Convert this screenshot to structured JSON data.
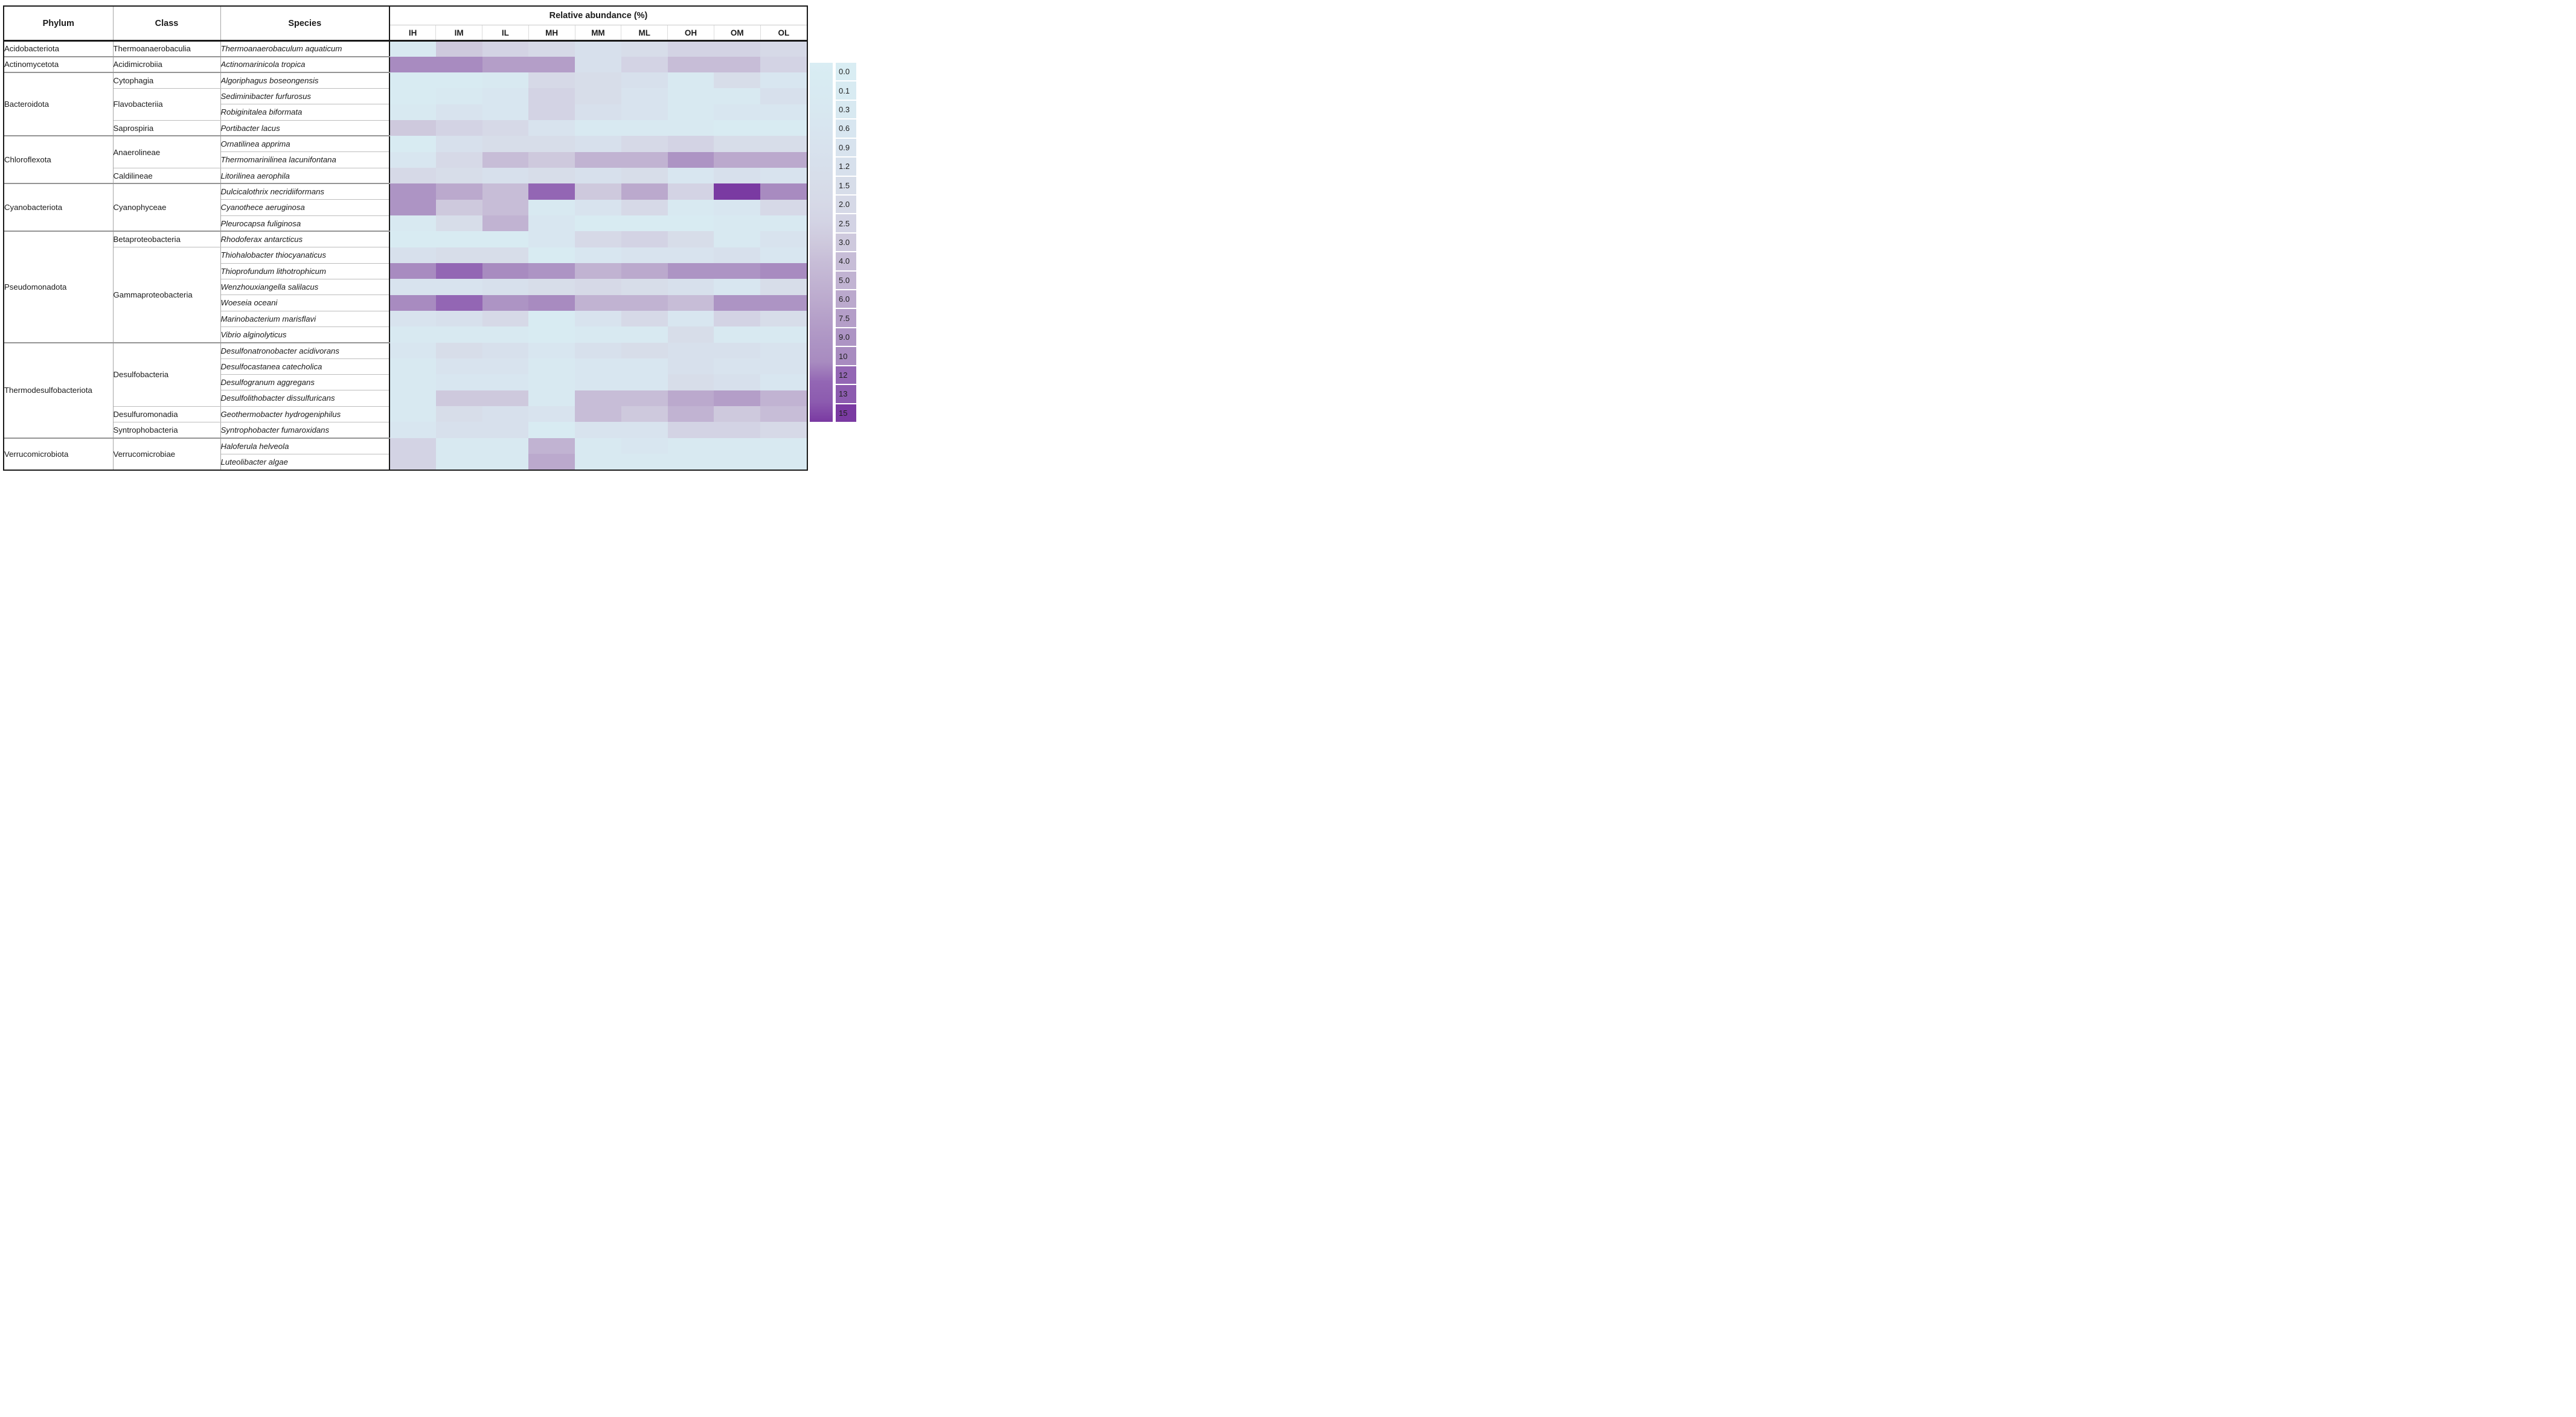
{
  "header": {
    "phylum_label": "Phylum",
    "class_label": "Class",
    "species_label": "Species",
    "abundance_title": "Relative abundance (%)"
  },
  "chart_data": {
    "type": "heatmap",
    "title": "Relative abundance (%)",
    "columns": [
      "IH",
      "IM",
      "IL",
      "MH",
      "MM",
      "ML",
      "OH",
      "OM",
      "OL"
    ],
    "rows": [
      {
        "phylum": "Acidobacteriota",
        "class": "Thermoanaerobaculia",
        "species": "Thermoanaerobaculum aquaticum",
        "values": [
          0.3,
          3.0,
          2.5,
          2.0,
          1.2,
          1.5,
          2.5,
          2.5,
          2.0
        ]
      },
      {
        "phylum": "Actinomycetota",
        "class": "Acidimicrobiia",
        "species": "Actinomarinicola tropica",
        "values": [
          10,
          10,
          7.5,
          7.5,
          1.2,
          2.5,
          4.0,
          4.0,
          2.5
        ]
      },
      {
        "phylum": "Bacteroidota",
        "class": "Cytophagia",
        "species": "Algoriphagus boseongensis",
        "values": [
          0.1,
          0.1,
          0.3,
          2.0,
          1.5,
          1.2,
          0.3,
          1.5,
          0.6
        ]
      },
      {
        "phylum": "Bacteroidota",
        "class": "Flavobacteriia",
        "species": "Sediminibacter furfurosus",
        "values": [
          0.1,
          0.3,
          0.6,
          2.5,
          1.5,
          0.9,
          0.3,
          0.3,
          1.2
        ]
      },
      {
        "phylum": "Bacteroidota",
        "class": "Flavobacteriia",
        "species": "Robiginitalea biformata",
        "values": [
          0.3,
          0.9,
          0.6,
          2.5,
          1.2,
          0.9,
          0.3,
          0.6,
          0.6
        ]
      },
      {
        "phylum": "Bacteroidota",
        "class": "Saprospiria",
        "species": "Portibacter lacus",
        "values": [
          3.0,
          2.5,
          2.0,
          0.9,
          0.3,
          0.3,
          0.3,
          0.1,
          0.1
        ]
      },
      {
        "phylum": "Chloroflexota",
        "class": "Anaerolineae",
        "species": "Ornatilinea apprima",
        "values": [
          0.1,
          1.2,
          1.5,
          1.5,
          1.2,
          2.0,
          2.5,
          1.5,
          1.5
        ]
      },
      {
        "phylum": "Chloroflexota",
        "class": "Anaerolineae",
        "species": "Thermomarinilinea lacunifontana",
        "values": [
          0.6,
          2.0,
          4.0,
          3.0,
          5.0,
          5.0,
          9.0,
          6.0,
          6.0
        ]
      },
      {
        "phylum": "Chloroflexota",
        "class": "Caldilineae",
        "species": "Litorilinea aerophila",
        "values": [
          2.0,
          1.5,
          1.2,
          1.5,
          1.2,
          1.5,
          0.6,
          1.2,
          0.9
        ]
      },
      {
        "phylum": "Cyanobacteriota",
        "class": "Cyanophyceae",
        "species": "Dulcicalothrix necridiiformans",
        "values": [
          9.0,
          6.0,
          4.0,
          12,
          3.0,
          6.0,
          2.5,
          15,
          10
        ]
      },
      {
        "phylum": "Cyanobacteriota",
        "class": "Cyanophyceae",
        "species": "Cyanothece aeruginosa",
        "values": [
          9.0,
          3.0,
          4.0,
          0.3,
          0.9,
          2.0,
          0.3,
          0.6,
          2.0
        ]
      },
      {
        "phylum": "Cyanobacteriota",
        "class": "Cyanophyceae",
        "species": "Pleurocapsa fuliginosa",
        "values": [
          0.3,
          1.5,
          5.0,
          0.6,
          0.1,
          0.1,
          0.1,
          0.3,
          0.3
        ]
      },
      {
        "phylum": "Pseudomonadota",
        "class": "Betaproteobacteria",
        "species": "Rhodoferax antarcticus",
        "values": [
          0.1,
          0.1,
          0.1,
          0.6,
          2.0,
          2.5,
          1.5,
          0.3,
          0.9
        ]
      },
      {
        "phylum": "Pseudomonadota",
        "class": "Gammaproteobacteria",
        "species": "Thiohalobacter thiocyanaticus",
        "values": [
          1.2,
          1.5,
          1.5,
          0.1,
          0.6,
          0.9,
          0.9,
          1.2,
          0.6
        ]
      },
      {
        "phylum": "Pseudomonadota",
        "class": "Gammaproteobacteria",
        "species": "Thioprofundum lithotrophicum",
        "values": [
          10,
          12,
          10,
          9.0,
          5.0,
          6.0,
          9.0,
          9.0,
          10
        ]
      },
      {
        "phylum": "Pseudomonadota",
        "class": "Gammaproteobacteria",
        "species": "Wenzhouxiangella salilacus",
        "values": [
          0.9,
          0.9,
          1.2,
          1.5,
          2.0,
          1.5,
          1.2,
          0.6,
          1.5
        ]
      },
      {
        "phylum": "Pseudomonadota",
        "class": "Gammaproteobacteria",
        "species": "Woeseia oceani",
        "values": [
          10,
          12,
          9.0,
          10,
          5.0,
          5.0,
          4.0,
          9.0,
          9.0
        ]
      },
      {
        "phylum": "Pseudomonadota",
        "class": "Gammaproteobacteria",
        "species": "Marinobacterium marisflavi",
        "values": [
          0.9,
          1.2,
          2.0,
          0.1,
          0.9,
          2.0,
          0.6,
          2.5,
          1.5
        ]
      },
      {
        "phylum": "Pseudomonadota",
        "class": "Gammaproteobacteria",
        "species": "Vibrio alginolyticus",
        "values": [
          0.3,
          0.3,
          0.3,
          0.1,
          0.3,
          0.3,
          1.5,
          0.3,
          0.3
        ]
      },
      {
        "phylum": "Thermodesulfobacteriota",
        "class": "Desulfobacteria",
        "species": "Desulfonatronobacter acidivorans",
        "values": [
          0.6,
          1.5,
          1.2,
          0.6,
          1.2,
          1.5,
          1.2,
          1.2,
          0.9
        ]
      },
      {
        "phylum": "Thermodesulfobacteriota",
        "class": "Desulfobacteria",
        "species": "Desulfocastanea catecholica",
        "values": [
          0.3,
          0.9,
          0.9,
          0.3,
          0.6,
          0.6,
          1.2,
          0.9,
          0.9
        ]
      },
      {
        "phylum": "Thermodesulfobacteriota",
        "class": "Desulfobacteria",
        "species": "Desulfogranum aggregans",
        "values": [
          0.3,
          0.6,
          0.6,
          0.3,
          0.6,
          0.6,
          1.5,
          1.2,
          0.6
        ]
      },
      {
        "phylum": "Thermodesulfobacteriota",
        "class": "Desulfobacteria",
        "species": "Desulfolithobacter dissulfuricans",
        "values": [
          0.3,
          3.0,
          3.0,
          0.3,
          4.0,
          4.0,
          6.0,
          7.5,
          5.0
        ]
      },
      {
        "phylum": "Thermodesulfobacteriota",
        "class": "Desulfuromonadia",
        "species": "Geothermobacter hydrogeniphilus",
        "values": [
          0.3,
          1.5,
          1.2,
          0.9,
          4.0,
          3.0,
          5.0,
          3.0,
          4.0
        ]
      },
      {
        "phylum": "Thermodesulfobacteriota",
        "class": "Syntrophobacteria",
        "species": "Syntrophobacter fumaroxidans",
        "values": [
          0.6,
          1.2,
          1.2,
          0.1,
          0.9,
          0.9,
          2.5,
          2.5,
          2.0
        ]
      },
      {
        "phylum": "Verrucomicrobiota",
        "class": "Verrucomicrobiae",
        "species": "Haloferula helveola",
        "values": [
          2.5,
          0.3,
          0.3,
          5.0,
          0.3,
          0.6,
          0.3,
          0.3,
          0.3
        ]
      },
      {
        "phylum": "Verrucomicrobiota",
        "class": "Verrucomicrobiae",
        "species": "Luteolibacter algae",
        "values": [
          2.5,
          0.3,
          0.3,
          6.0,
          0.3,
          0.3,
          0.3,
          0.3,
          0.3
        ]
      }
    ],
    "legend": {
      "labels": [
        "0.0",
        "0.1",
        "0.3",
        "0.6",
        "0.9",
        "1.2",
        "1.5",
        "2.0",
        "2.5",
        "3.0",
        "4.0",
        "5.0",
        "6.0",
        "7.5",
        "9.0",
        "10",
        "12",
        "13",
        "15"
      ],
      "values": [
        0.0,
        0.1,
        0.3,
        0.6,
        0.9,
        1.2,
        1.5,
        2.0,
        2.5,
        3.0,
        4.0,
        5.0,
        6.0,
        7.5,
        9.0,
        10,
        12,
        13,
        15
      ],
      "colors": [
        "#d9edf3",
        "#d8ebf2",
        "#d8e9f1",
        "#d8e6f0",
        "#d8e3ee",
        "#d7e0ec",
        "#d7dde9",
        "#d6d9e7",
        "#d3d3e4",
        "#cec9dd",
        "#c7bdd7",
        "#c1b3d2",
        "#bba9cd",
        "#b49ec8",
        "#ad94c4",
        "#a88bc0",
        "#9366b4",
        "#8c5baf",
        "#7a3aa2"
      ],
      "position": "right"
    },
    "grid": false
  }
}
